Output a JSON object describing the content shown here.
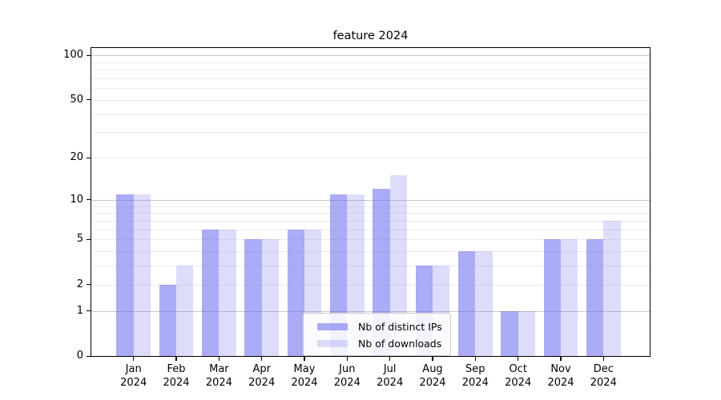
{
  "chart_data": {
    "type": "bar",
    "title": "feature 2024",
    "categories": [
      "Jan",
      "Feb",
      "Mar",
      "Apr",
      "May",
      "Jun",
      "Jul",
      "Aug",
      "Sep",
      "Oct",
      "Nov",
      "Dec"
    ],
    "category_year_suffix": "2024",
    "series": [
      {
        "name": "Nb of distinct IPs",
        "color": "rgba(102,102,238,0.55)",
        "values": [
          11,
          2,
          6,
          5,
          6,
          11,
          12,
          3,
          4,
          1,
          5,
          5
        ]
      },
      {
        "name": "Nb of downloads",
        "color": "rgba(102,102,238,0.22)",
        "values": [
          11,
          3,
          6,
          5,
          6,
          11,
          15,
          3,
          4,
          1,
          5,
          7
        ]
      }
    ],
    "yscale": "log1p",
    "ylim": [
      0,
      112
    ],
    "ytick_values": [
      0,
      1,
      2,
      5,
      10,
      20,
      50,
      100
    ],
    "ytick_labels": [
      "0",
      "1",
      "2",
      "5",
      "10",
      "20",
      "50",
      "100"
    ],
    "major_grid_values": [
      1,
      10,
      100
    ],
    "minor_grid_values": [
      2,
      3,
      4,
      5,
      6,
      7,
      8,
      9,
      20,
      30,
      40,
      50,
      60,
      70,
      80,
      90
    ],
    "grid": true,
    "legend_position": "lower center",
    "colors": {
      "major_grid": "#c8c8c8",
      "minor_grid": "#ececec",
      "spine": "#000000",
      "text": "#000000",
      "legend_border": "#cccccc"
    }
  }
}
